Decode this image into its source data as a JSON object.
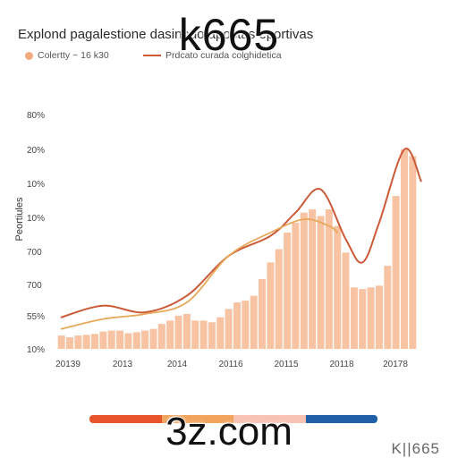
{
  "watermark": {
    "top": "k665",
    "bottom": "3z.com",
    "corner": "K||665"
  },
  "chart_data": {
    "type": "bar",
    "title": "Explond pagalestione dasinhdo apostas eportivas",
    "legend": [
      "Colertty ~ 16 k30",
      "Prdcato curada colghidetica"
    ],
    "ylabel": "Peortiules",
    "xlabel": "",
    "x_tick_labels": [
      "20139",
      "2013",
      "2014",
      "20116",
      "20115",
      "20118",
      "20178"
    ],
    "y_tick_labels": [
      "80%",
      "20%",
      "10%",
      "10%",
      "700",
      "700",
      "55%",
      "10%"
    ],
    "grid": false,
    "legend_placement": "top-left",
    "ylim": [
      0,
      7
    ],
    "bars": [
      0.4,
      0.35,
      0.4,
      0.42,
      0.45,
      0.52,
      0.55,
      0.55,
      0.47,
      0.5,
      0.55,
      0.6,
      0.75,
      0.85,
      1.0,
      1.05,
      0.85,
      0.85,
      0.8,
      0.95,
      1.2,
      1.4,
      1.45,
      1.6,
      2.1,
      2.6,
      3.0,
      3.5,
      3.8,
      4.1,
      4.2,
      4.0,
      4.2,
      3.7,
      2.9,
      1.85,
      1.8,
      1.85,
      1.9,
      2.5,
      4.6,
      6.0,
      5.8
    ],
    "series": [
      {
        "name": "Prdcato curada colghidetica",
        "type": "line",
        "x": [
          0,
          5,
          10,
          15,
          20,
          25,
          28,
          31,
          34,
          36,
          38,
          41,
          43
        ],
        "values": [
          0.95,
          1.3,
          1.1,
          1.6,
          2.8,
          3.4,
          4.1,
          4.8,
          3.3,
          2.6,
          3.8,
          6.0,
          5.05
        ]
      },
      {
        "name": "Colertty ~ 16 k30",
        "type": "line",
        "x": [
          0,
          5,
          10,
          15,
          20,
          25,
          29,
          32,
          33
        ],
        "values": [
          0.6,
          0.9,
          1.05,
          1.4,
          2.8,
          3.5,
          3.9,
          3.7,
          3.5
        ]
      }
    ],
    "colors": {
      "bars": "#f7c3a3",
      "line_dark": "#cc5a37",
      "line_light": "#e8a85a"
    },
    "bottom_strip_colors": [
      "#e8532a",
      "#f2a45f",
      "#f8c3b3",
      "#1f5fa8"
    ]
  }
}
